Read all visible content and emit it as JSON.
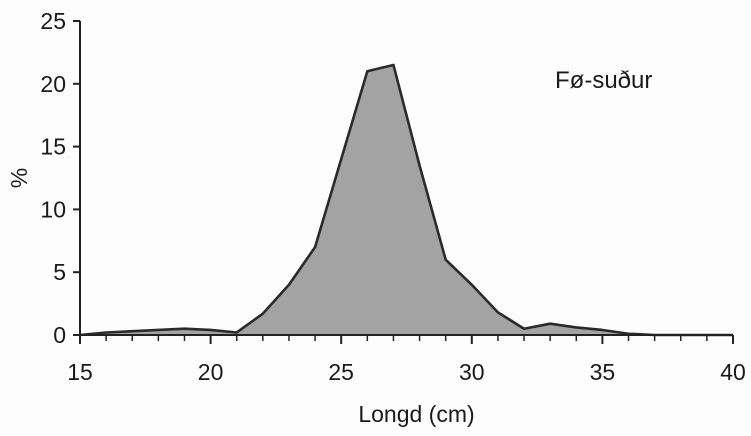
{
  "chart_data": {
    "type": "area",
    "title": "",
    "annotation": "Fø-suður",
    "xlabel": "Longd (cm)",
    "ylabel": "%",
    "xlim": [
      15,
      40
    ],
    "ylim": [
      0,
      25
    ],
    "xticks": [
      15,
      20,
      25,
      30,
      35,
      40
    ],
    "yticks": [
      0,
      5,
      10,
      15,
      20,
      25
    ],
    "x_minor_step": 1,
    "grid": false,
    "legend": "none",
    "colors": {
      "fill": "#a3a3a3",
      "line": "#2a2a2a",
      "axis": "#222222"
    },
    "series": [
      {
        "x": [
          15,
          16,
          17,
          18,
          19,
          20,
          21,
          22,
          23,
          24,
          25,
          26,
          27,
          28,
          29,
          30,
          31,
          32,
          33,
          34,
          35,
          36,
          37,
          38,
          39,
          40
        ],
        "values": [
          0.0,
          0.2,
          0.3,
          0.4,
          0.5,
          0.4,
          0.2,
          1.7,
          4.0,
          7.0,
          14.0,
          21.0,
          21.5,
          13.5,
          6.0,
          4.0,
          1.8,
          0.5,
          0.9,
          0.6,
          0.4,
          0.1,
          0.0,
          0.0,
          0.0,
          0.0
        ]
      }
    ]
  }
}
